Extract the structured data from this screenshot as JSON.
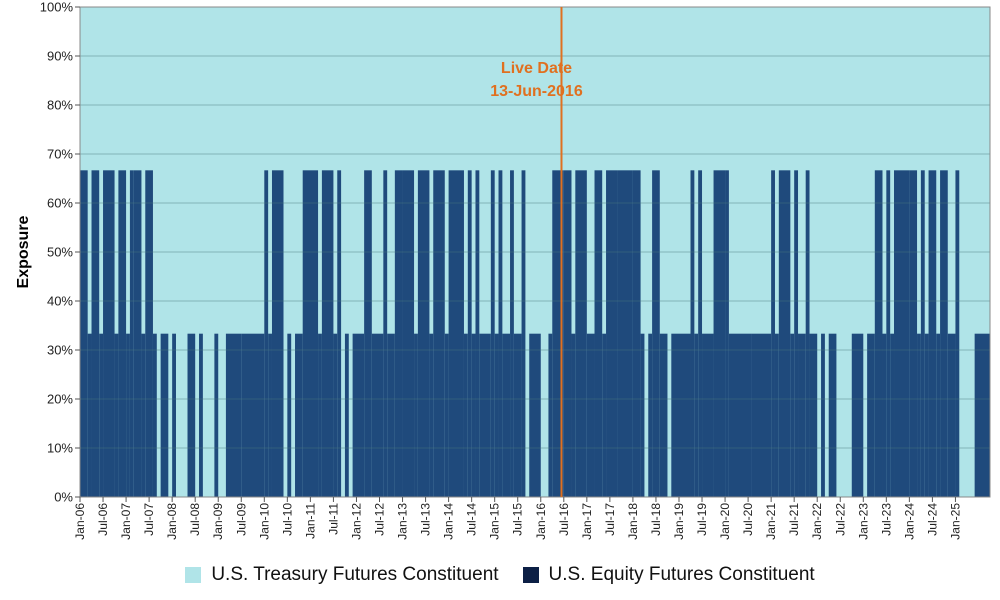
{
  "chart_data": {
    "type": "area",
    "ylabel": "Exposure",
    "xlabel": "",
    "ylim": [
      0,
      100
    ],
    "y_ticks": [
      "0%",
      "10%",
      "20%",
      "30%",
      "40%",
      "50%",
      "60%",
      "70%",
      "80%",
      "90%",
      "100%"
    ],
    "x_ticks": [
      "Jan-06",
      "Jul-06",
      "Jan-07",
      "Jul-07",
      "Jan-08",
      "Jul-08",
      "Jan-09",
      "Jul-09",
      "Jan-10",
      "Jul-10",
      "Jan-11",
      "Jul-11",
      "Jan-12",
      "Jul-12",
      "Jan-13",
      "Jul-13",
      "Jan-14",
      "Jul-14",
      "Jan-15",
      "Jul-15",
      "Jan-16",
      "Jul-16",
      "Jan-17",
      "Jul-17",
      "Jan-18",
      "Jul-18",
      "Jan-19",
      "Jul-19",
      "Jan-20",
      "Jul-20",
      "Jan-21",
      "Jul-21",
      "Jan-22",
      "Jul-22",
      "Jan-23",
      "Jul-23",
      "Jan-24",
      "Jul-24",
      "Jan-25"
    ],
    "x_range": [
      "Jan-06",
      "Oct-25"
    ],
    "grid": true,
    "legend_position": "bottom",
    "annotation": {
      "line1": "Live Date",
      "line2": "13-Jun-2016",
      "date": "13-Jun-2016",
      "color": "#e07020"
    },
    "series": [
      {
        "name": "U.S. Treasury Futures Constituent",
        "color": "#b0e4e8",
        "note": "complement of equity exposure (100% minus equity)"
      },
      {
        "name": "U.S. Equity Futures Constituent",
        "color": "#1f4a7c",
        "steps": [
          [
            "Jan-06",
            66.67
          ],
          [
            "Mar-06",
            33.33
          ],
          [
            "Apr-06",
            66.67
          ],
          [
            "Jun-06",
            33.33
          ],
          [
            "Jul-06",
            66.67
          ],
          [
            "Oct-06",
            33.33
          ],
          [
            "Nov-06",
            66.67
          ],
          [
            "Jan-07",
            33.33
          ],
          [
            "Feb-07",
            66.67
          ],
          [
            "Mar-07",
            66.67
          ],
          [
            "May-07",
            33.33
          ],
          [
            "Jun-07",
            66.67
          ],
          [
            "Aug-07",
            33.33
          ],
          [
            "Sep-07",
            0
          ],
          [
            "Oct-07",
            33.33
          ],
          [
            "Dec-07",
            0
          ],
          [
            "Jan-08",
            33.33
          ],
          [
            "Feb-08",
            0
          ],
          [
            "May-08",
            33.33
          ],
          [
            "Jul-08",
            0
          ],
          [
            "Aug-08",
            33.33
          ],
          [
            "Sep-08",
            0
          ],
          [
            "Dec-08",
            33.33
          ],
          [
            "Jan-09",
            0
          ],
          [
            "Mar-09",
            33.33
          ],
          [
            "Jul-09",
            33.33
          ],
          [
            "Jan-10",
            66.67
          ],
          [
            "Feb-10",
            33.33
          ],
          [
            "Mar-10",
            66.67
          ],
          [
            "Jun-10",
            0
          ],
          [
            "Jul-10",
            33.33
          ],
          [
            "Aug-10",
            0
          ],
          [
            "Sep-10",
            33.33
          ],
          [
            "Nov-10",
            66.67
          ],
          [
            "Mar-11",
            33.33
          ],
          [
            "Apr-11",
            66.67
          ],
          [
            "Jul-11",
            33.33
          ],
          [
            "Aug-11",
            66.67
          ],
          [
            "Sep-11",
            0
          ],
          [
            "Oct-11",
            33.33
          ],
          [
            "Nov-11",
            0
          ],
          [
            "Dec-11",
            33.33
          ],
          [
            "Mar-12",
            66.67
          ],
          [
            "May-12",
            33.33
          ],
          [
            "Aug-12",
            66.67
          ],
          [
            "Sep-12",
            33.33
          ],
          [
            "Nov-12",
            66.67
          ],
          [
            "Jan-13",
            66.67
          ],
          [
            "Apr-13",
            33.33
          ],
          [
            "May-13",
            66.67
          ],
          [
            "Aug-13",
            33.33
          ],
          [
            "Sep-13",
            66.67
          ],
          [
            "Dec-13",
            33.33
          ],
          [
            "Jan-14",
            66.67
          ],
          [
            "May-14",
            33.33
          ],
          [
            "Jun-14",
            66.67
          ],
          [
            "Jul-14",
            33.33
          ],
          [
            "Aug-14",
            66.67
          ],
          [
            "Sep-14",
            33.33
          ],
          [
            "Dec-14",
            66.67
          ],
          [
            "Jan-15",
            33.33
          ],
          [
            "Feb-15",
            66.67
          ],
          [
            "Mar-15",
            33.33
          ],
          [
            "May-15",
            66.67
          ],
          [
            "Jun-15",
            33.33
          ],
          [
            "Aug-15",
            66.67
          ],
          [
            "Sep-15",
            0
          ],
          [
            "Oct-15",
            33.33
          ],
          [
            "Jan-16",
            0
          ],
          [
            "Mar-16",
            33.33
          ],
          [
            "Apr-16",
            66.67
          ],
          [
            "Jul-16",
            66.67
          ],
          [
            "Sep-16",
            33.33
          ],
          [
            "Oct-16",
            66.67
          ],
          [
            "Jan-17",
            33.33
          ],
          [
            "Mar-17",
            66.67
          ],
          [
            "May-17",
            33.33
          ],
          [
            "Jun-17",
            66.67
          ],
          [
            "Sep-17",
            66.67
          ],
          [
            "Jan-18",
            66.67
          ],
          [
            "Mar-18",
            33.33
          ],
          [
            "Apr-18",
            0
          ],
          [
            "May-18",
            33.33
          ],
          [
            "Jun-18",
            66.67
          ],
          [
            "Aug-18",
            33.33
          ],
          [
            "Oct-18",
            0
          ],
          [
            "Nov-18",
            33.33
          ],
          [
            "Apr-19",
            66.67
          ],
          [
            "May-19",
            33.33
          ],
          [
            "Jun-19",
            66.67
          ],
          [
            "Jul-19",
            33.33
          ],
          [
            "Oct-19",
            66.67
          ],
          [
            "Jan-20",
            66.67
          ],
          [
            "Feb-20",
            33.33
          ],
          [
            "Aug-20",
            33.33
          ],
          [
            "Jan-21",
            66.67
          ],
          [
            "Feb-21",
            33.33
          ],
          [
            "Mar-21",
            66.67
          ],
          [
            "Jun-21",
            33.33
          ],
          [
            "Jul-21",
            66.67
          ],
          [
            "Aug-21",
            33.33
          ],
          [
            "Oct-21",
            66.67
          ],
          [
            "Nov-21",
            33.33
          ],
          [
            "Jan-22",
            0
          ],
          [
            "Feb-22",
            33.33
          ],
          [
            "Mar-22",
            0
          ],
          [
            "Apr-22",
            33.33
          ],
          [
            "Jun-22",
            0
          ],
          [
            "Oct-22",
            33.33
          ],
          [
            "Jan-23",
            0
          ],
          [
            "Feb-23",
            33.33
          ],
          [
            "Apr-23",
            66.67
          ],
          [
            "Jun-23",
            33.33
          ],
          [
            "Jul-23",
            66.67
          ],
          [
            "Aug-23",
            33.33
          ],
          [
            "Sep-23",
            66.67
          ],
          [
            "Jan-24",
            66.67
          ],
          [
            "Mar-24",
            33.33
          ],
          [
            "Apr-24",
            66.67
          ],
          [
            "May-24",
            33.33
          ],
          [
            "Jun-24",
            66.67
          ],
          [
            "Aug-24",
            33.33
          ],
          [
            "Sep-24",
            66.67
          ],
          [
            "Nov-24",
            33.33
          ],
          [
            "Jan-25",
            66.67
          ],
          [
            "Feb-25",
            0
          ],
          [
            "Jun-25",
            33.33
          ]
        ]
      }
    ]
  }
}
